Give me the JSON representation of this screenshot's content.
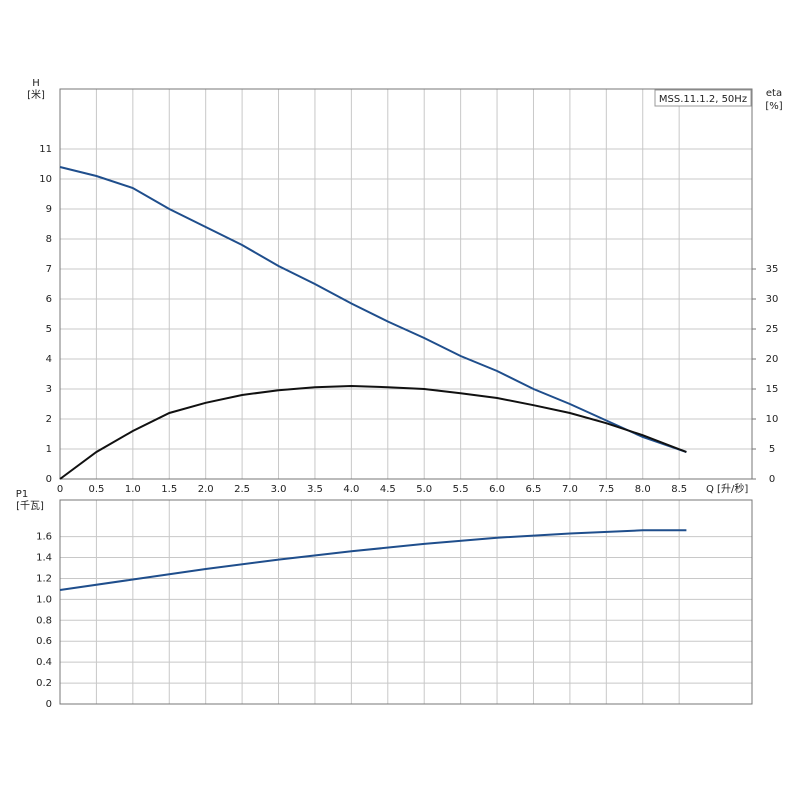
{
  "chart_data": [
    {
      "type": "line",
      "y_label": "H",
      "y_unit": "[米]",
      "y2_label": "eta",
      "y2_unit": "[%]",
      "x_label": "Q [升/秒]",
      "annotation": "MSS.11.1.2, 50Hz",
      "xlim": [
        0,
        9.5
      ],
      "xticks": [
        0,
        0.5,
        {
          "value": 1,
          "label": "1.0"
        },
        1.5,
        {
          "value": 2,
          "label": "2.0"
        },
        2.5,
        {
          "value": 3,
          "label": "3.0"
        },
        3.5,
        {
          "value": 4,
          "label": "4.0"
        },
        4.5,
        {
          "value": 5,
          "label": "5.0"
        },
        5.5,
        {
          "value": 6,
          "label": "6.0"
        },
        6.5,
        {
          "value": 7,
          "label": "7.0"
        },
        7.5,
        {
          "value": 8,
          "label": "8.0"
        },
        8.5
      ],
      "ylim": [
        0,
        13
      ],
      "yticks": [
        0,
        1,
        2,
        3,
        4,
        5,
        6,
        7,
        8,
        9,
        10,
        11
      ],
      "y2lim": [
        0,
        65
      ],
      "y2ticks": [
        0,
        5,
        10,
        15,
        20,
        25,
        30,
        35
      ],
      "grid": true,
      "x": [
        0,
        0.5,
        1,
        1.5,
        2,
        2.5,
        3,
        3.5,
        4,
        4.5,
        5,
        5.5,
        6,
        6.5,
        7,
        7.5,
        8,
        8.6
      ],
      "series": [
        {
          "color": "#1f4e8c",
          "axis": "y",
          "values": [
            10.4,
            10.1,
            9.7,
            9.0,
            8.4,
            7.8,
            7.1,
            6.5,
            5.85,
            5.25,
            4.7,
            4.1,
            3.6,
            3.0,
            2.5,
            1.95,
            1.4,
            0.9
          ]
        },
        {
          "color": "#111111",
          "axis": "y2",
          "values": [
            0,
            4.5,
            8,
            11,
            12.7,
            14,
            14.8,
            15.3,
            15.5,
            15.3,
            15,
            14.3,
            13.5,
            12.3,
            11,
            9.3,
            7.3,
            4.5
          ]
        }
      ]
    },
    {
      "type": "line",
      "y_label": "P1",
      "y_unit": "[千瓦]",
      "xlim": [
        0,
        9.5
      ],
      "ylim": [
        0,
        1.95
      ],
      "yticks": [
        0,
        0.2,
        0.4,
        0.6,
        0.8,
        {
          "value": 1,
          "label": "1.0"
        },
        1.2,
        1.4,
        1.6
      ],
      "grid": true,
      "x": [
        0,
        1,
        2,
        3,
        4,
        5,
        6,
        7,
        8,
        8.6
      ],
      "series": [
        {
          "color": "#1f4e8c",
          "axis": "y",
          "values": [
            1.09,
            1.19,
            1.29,
            1.38,
            1.46,
            1.53,
            1.59,
            1.63,
            1.66,
            1.66
          ]
        }
      ]
    }
  ]
}
